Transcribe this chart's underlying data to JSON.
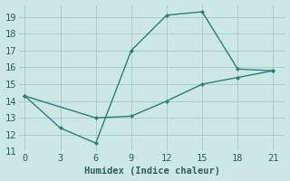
{
  "line1_x": [
    0,
    3,
    6,
    9,
    12,
    15,
    18,
    21
  ],
  "line1_y": [
    14.3,
    12.4,
    11.5,
    17.0,
    19.1,
    19.3,
    15.9,
    15.8
  ],
  "line2_x": [
    0,
    6,
    9,
    12,
    15,
    18,
    21
  ],
  "line2_y": [
    14.3,
    13.0,
    13.1,
    14.0,
    15.0,
    15.4,
    15.8
  ],
  "line_color": "#2e7d72",
  "bg_color": "#cce8e4",
  "grid_color": "#aaccca",
  "xlabel": "Humidex (Indice chaleur)",
  "xlim": [
    -0.5,
    22
  ],
  "ylim": [
    11,
    19.7
  ],
  "xticks": [
    0,
    3,
    6,
    9,
    12,
    15,
    18,
    21
  ],
  "yticks": [
    11,
    12,
    13,
    14,
    15,
    16,
    17,
    18,
    19
  ],
  "font_color": "#2e5e5a",
  "font_size": 7.5
}
